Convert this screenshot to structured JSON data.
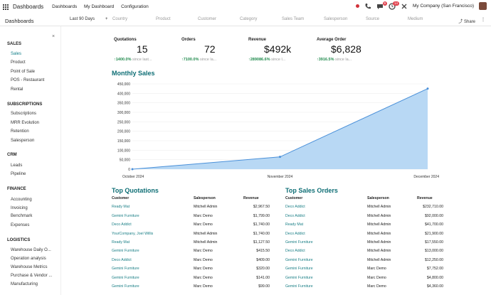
{
  "topbar": {
    "brand": "Dashboards",
    "menu": [
      "Dashboards",
      "My Dashboard",
      "Configuration"
    ],
    "badge1": "9",
    "badge2": "14",
    "company": "My Company (San Francisco)"
  },
  "control": {
    "title": "Dashboards",
    "date_filter": "Last 90 Days",
    "filters": [
      "Country",
      "Product",
      "Customer",
      "Category",
      "Sales Team",
      "Salesperson",
      "Source",
      "Medium"
    ],
    "share": "Share"
  },
  "sidebar": {
    "sections": [
      {
        "title": "SALES",
        "items": [
          "Sales",
          "Product",
          "Point of Sale",
          "POS - Restaurant",
          "Rental"
        ]
      },
      {
        "title": "SUBSCRIPTIONS",
        "items": [
          "Subscriptions",
          "MRR Evolution",
          "Retention",
          "Salesperson"
        ]
      },
      {
        "title": "CRM",
        "items": [
          "Leads",
          "Pipeline"
        ]
      },
      {
        "title": "FINANCE",
        "items": [
          "Accounting",
          "Invoicing",
          "Benchmark",
          "Expenses"
        ]
      },
      {
        "title": "LOGISTICS",
        "items": [
          "Warehouse Daily O...",
          "Operation analysis",
          "Warehouse Metrics",
          "Purchase & Vendor ...",
          "Manufacturing"
        ]
      }
    ]
  },
  "kpis": [
    {
      "label": "Quotations",
      "value": "15",
      "change": "↑1400.0%",
      "since": "since last..."
    },
    {
      "label": "Orders",
      "value": "72",
      "change": "↑7100.0%",
      "since": "since la..."
    },
    {
      "label": "Revenue",
      "value": "$492k",
      "change": "↑289086.6%",
      "since": "since l..."
    },
    {
      "label": "Average Order",
      "value": "$6,828",
      "change": "↑3916.5%",
      "since": "since la..."
    }
  ],
  "monthly_sales_title": "Monthly Sales",
  "chart_data": {
    "type": "area",
    "x": [
      "October 2024",
      "November 2024",
      "December 2024"
    ],
    "series": [
      {
        "values": [
          0,
          65000,
          425000
        ]
      }
    ],
    "ylim": [
      0,
      450000
    ],
    "yticks": [
      "0",
      "50,000",
      "100,000",
      "150,000",
      "200,000",
      "250,000",
      "300,000",
      "350,000",
      "400,000",
      "450,000"
    ],
    "color": "#b8d8f4",
    "line": "#4a90d9"
  },
  "top_quotations": {
    "title": "Top Quotations",
    "headers": [
      "Customer",
      "Salesperson",
      "Revenue"
    ],
    "rows": [
      [
        "Ready Mat",
        "Mitchell Admin",
        "$2,967.50"
      ],
      [
        "Gemini Furniture",
        "Marc Demo",
        "$1,799.00"
      ],
      [
        "Deco Addict",
        "Marc Demo",
        "$1,740.00"
      ],
      [
        "YourCompany, Joel Willis",
        "Mitchell Admin",
        "$1,740.00"
      ],
      [
        "Ready Mat",
        "Mitchell Admin",
        "$1,127.50"
      ],
      [
        "Gemini Furniture",
        "Marc Demo",
        "$415.50"
      ],
      [
        "Deco Addict",
        "Marc Demo",
        "$409.00"
      ],
      [
        "Gemini Furniture",
        "Marc Demo",
        "$320.00"
      ],
      [
        "Gemini Furniture",
        "Marc Demo",
        "$141.00"
      ],
      [
        "Gemini Furniture",
        "Marc Demo",
        "$99.00"
      ]
    ]
  },
  "top_sales_orders": {
    "title": "Top Sales Orders",
    "headers": [
      "Customer",
      "Salesperson",
      "Revenue"
    ],
    "rows": [
      [
        "Deco Addict",
        "Mitchell Admin",
        "$232,710.00"
      ],
      [
        "Deco Addict",
        "Mitchell Admin",
        "$92,000.00"
      ],
      [
        "Ready Mat",
        "Mitchell Admin",
        "$41,700.00"
      ],
      [
        "Deco Addict",
        "Mitchell Admin",
        "$21,900.00"
      ],
      [
        "Gemini Furniture",
        "Mitchell Admin",
        "$17,550.00"
      ],
      [
        "Deco Addict",
        "Mitchell Admin",
        "$13,000.00"
      ],
      [
        "Gemini Furniture",
        "Mitchell Admin",
        "$12,250.00"
      ],
      [
        "Gemini Furniture",
        "Marc Demo",
        "$7,752.00"
      ],
      [
        "Gemini Furniture",
        "Marc Demo",
        "$4,800.00"
      ],
      [
        "Gemini Furniture",
        "Marc Demo",
        "$4,360.00"
      ]
    ]
  }
}
